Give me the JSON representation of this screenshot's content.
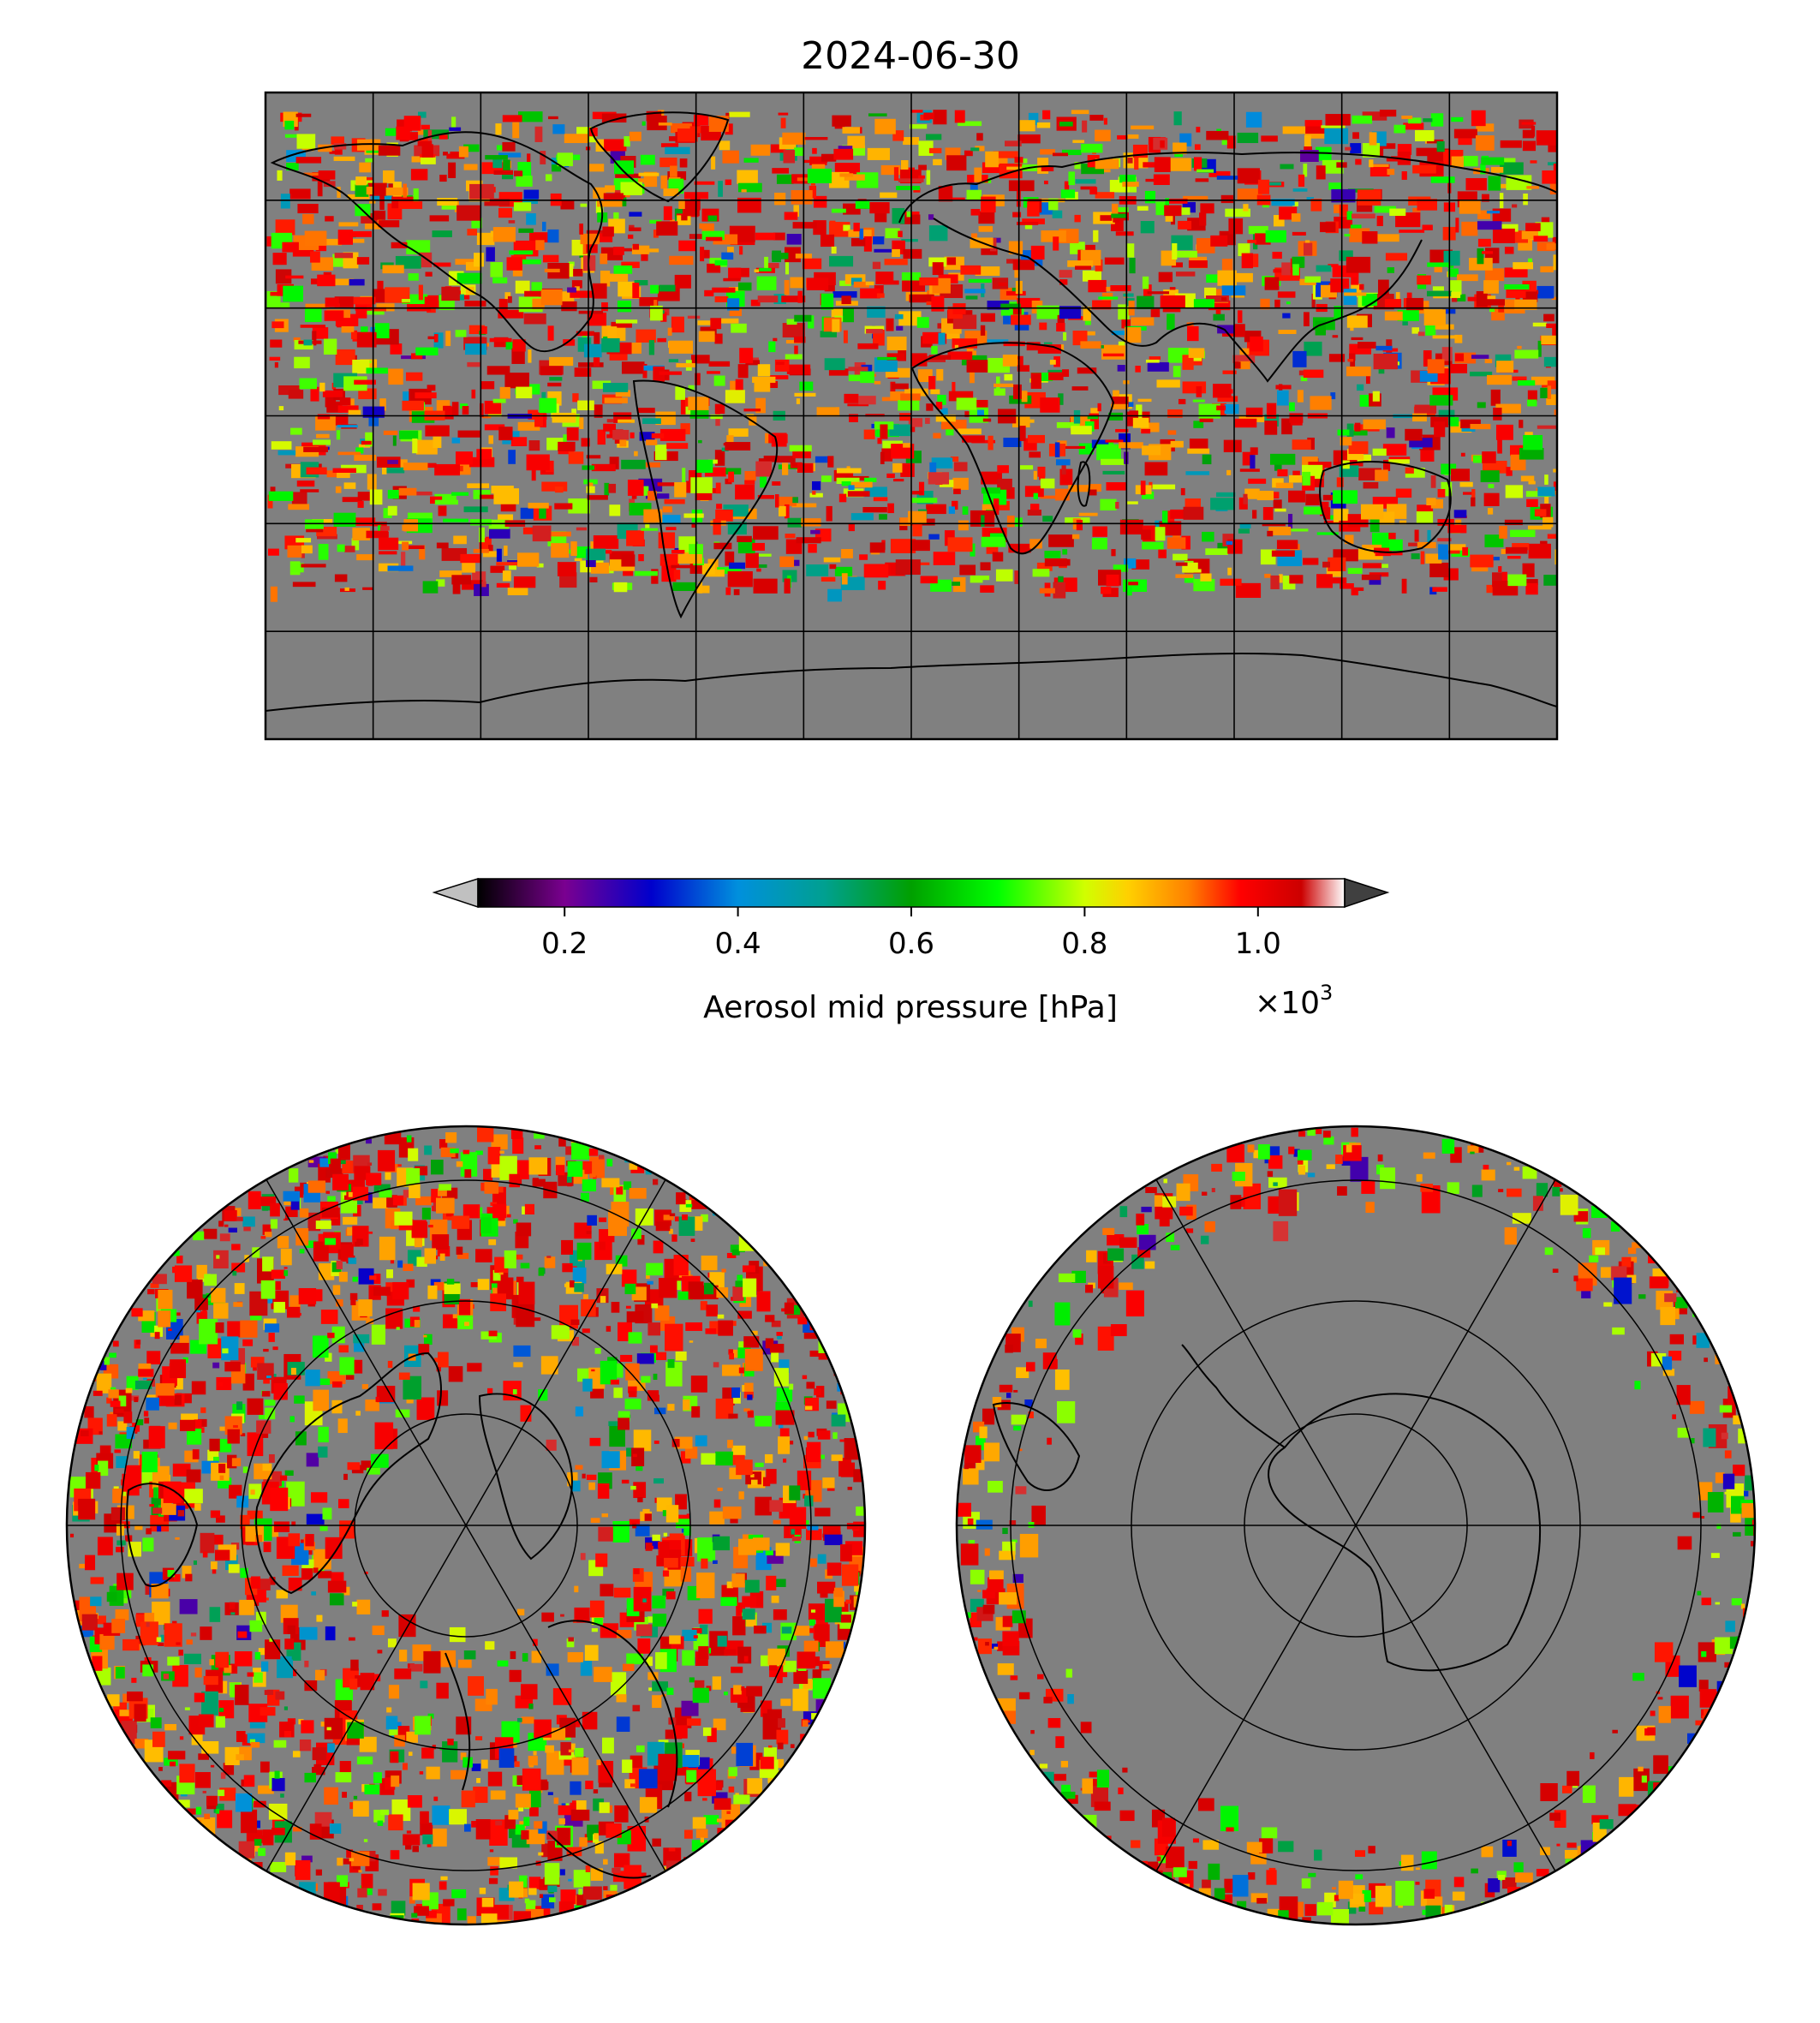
{
  "figure": {
    "title": "2024-06-30"
  },
  "colorbar": {
    "label": "Aerosol mid pressure [hPa]",
    "multiplier_prefix": "×10",
    "multiplier_exp": "3",
    "ticks": [
      {
        "value": 0.2,
        "label": "0.2"
      },
      {
        "value": 0.4,
        "label": "0.4"
      },
      {
        "value": 0.6,
        "label": "0.6"
      },
      {
        "value": 0.8,
        "label": "0.8"
      },
      {
        "value": 1.0,
        "label": "1.0"
      }
    ],
    "range": [
      0.1,
      1.1
    ],
    "extend": "both",
    "under_color": "#c0c0c0",
    "over_color": "#404040",
    "colormap_stops": [
      {
        "v": 0.0,
        "c": "#000000"
      },
      {
        "v": 0.1,
        "c": "#7a0090"
      },
      {
        "v": 0.2,
        "c": "#0000cc"
      },
      {
        "v": 0.3,
        "c": "#0090dd"
      },
      {
        "v": 0.4,
        "c": "#00a090"
      },
      {
        "v": 0.5,
        "c": "#00a000"
      },
      {
        "v": 0.6,
        "c": "#00ff00"
      },
      {
        "v": 0.7,
        "c": "#d0ff00"
      },
      {
        "v": 0.75,
        "c": "#ffd000"
      },
      {
        "v": 0.82,
        "c": "#ff8000"
      },
      {
        "v": 0.88,
        "c": "#ff0000"
      },
      {
        "v": 0.95,
        "c": "#cc0000"
      },
      {
        "v": 1.0,
        "c": "#ffffff"
      }
    ]
  },
  "maps": {
    "background_color": "#808080",
    "global": {
      "projection": "plate-carree",
      "gridlines_lon_deg": 30,
      "gridlines_lat_deg": 30
    },
    "north_polar": {
      "projection": "north-polar-stereographic",
      "meridians_deg": 60
    },
    "south_polar": {
      "projection": "south-polar-stereographic",
      "meridians_deg": 60
    }
  }
}
